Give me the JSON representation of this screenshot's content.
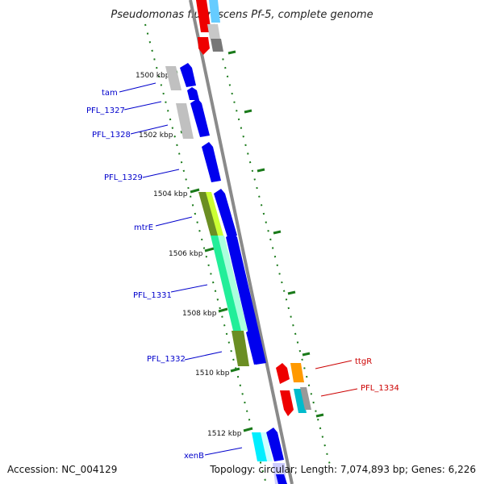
{
  "title": "Pseudomonas fluorescens Pf-5, complete genome",
  "footer": {
    "accession": "Accession: NC_004129",
    "topology": "Topology: circular; Length: 7,074,893 bp; Genes: 6,226"
  },
  "ticks": [
    "1500 kbp",
    "1502 kbp",
    "1504 kbp",
    "1506 kbp",
    "1508 kbp",
    "1510 kbp",
    "1512 kbp"
  ],
  "genes_left": [
    "tam",
    "PFL_1327",
    "PFL_1328",
    "PFL_1329",
    "mtrE",
    "PFL_1331",
    "PFL_1332",
    "xenB"
  ],
  "genes_right": [
    "ttgR",
    "PFL_1334"
  ],
  "colors": {
    "backbone": "#888888",
    "forward_cds": "#0000ee",
    "reverse_cds": "#ee0000",
    "left_label": "#0000cc",
    "right_label": "#cc0000",
    "tick_mark": "#1a7a1a"
  }
}
